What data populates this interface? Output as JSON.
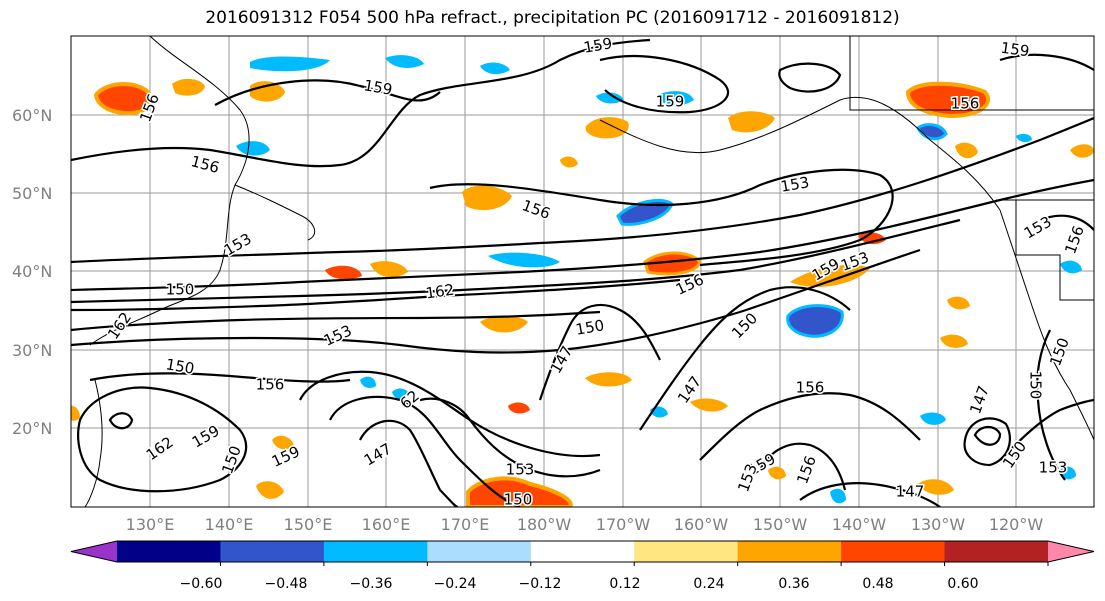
{
  "title": "2016091312 F054 500 hPa refract., precipitation PC (2016091712 - 2016091812)",
  "lat_labels": [
    "60°N",
    "50°N",
    "40°N",
    "30°N",
    "20°N"
  ],
  "lon_labels": [
    "130°E",
    "140°E",
    "150°E",
    "160°E",
    "170°E",
    "180°W",
    "170°W",
    "160°W",
    "150°W",
    "140°W",
    "130°W",
    "120°W"
  ],
  "colorbar": {
    "colors": [
      "#9933cc",
      "#000088",
      "#3355cc",
      "#00bbff",
      "#aaddff",
      "#ffffff",
      "#ffe680",
      "#ffa500",
      "#ff4500",
      "#b22222",
      "#ff88aa"
    ],
    "tick_labels": [
      "−0.60",
      "−0.48",
      "−0.36",
      "−0.24",
      "−0.12",
      "0.12",
      "0.24",
      "0.36",
      "0.48",
      "0.60"
    ]
  },
  "contour_labels": [
    "159",
    "159",
    "159",
    "159",
    "156",
    "156",
    "156",
    "156",
    "156",
    "156",
    "153",
    "153",
    "153",
    "153",
    "150",
    "150",
    "150",
    "150",
    "150",
    "150",
    "162",
    "162",
    "162",
    "147",
    "147",
    "147",
    "147",
    "159",
    "159",
    "159",
    "153",
    "153",
    "156",
    "156",
    "153",
    "150",
    "159",
    "150",
    "156",
    "147",
    "153",
    "150",
    "62"
  ]
}
